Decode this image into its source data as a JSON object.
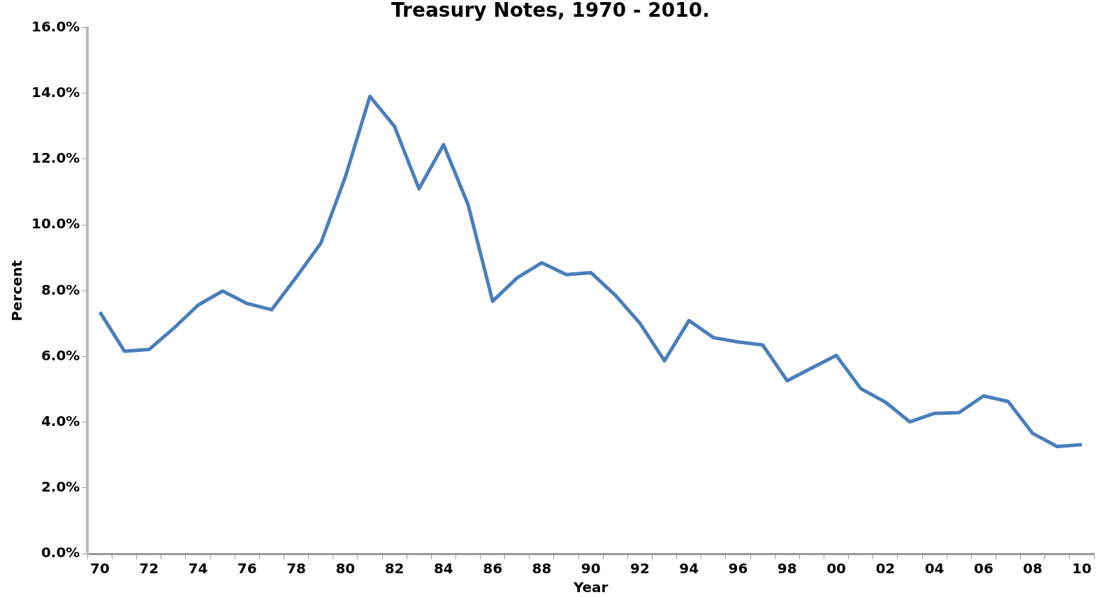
{
  "chart_data": {
    "type": "line",
    "title": "Treasury Notes, 1970 - 2010.",
    "xlabel": "Year",
    "ylabel": "Percent",
    "categories": [
      "70",
      null,
      "72",
      null,
      "74",
      null,
      "76",
      null,
      "78",
      null,
      "80",
      null,
      "82",
      null,
      "84",
      null,
      "86",
      null,
      "88",
      null,
      "90",
      null,
      "92",
      null,
      "94",
      null,
      "96",
      null,
      "98",
      null,
      "00",
      null,
      "02",
      null,
      "04",
      null,
      "06",
      null,
      "08",
      null,
      "10"
    ],
    "series": [
      {
        "color": "#4a7ebb",
        "values": [
          7.35,
          6.16,
          6.21,
          6.85,
          7.56,
          7.99,
          7.61,
          7.42,
          8.41,
          9.44,
          11.46,
          13.91,
          13.0,
          11.1,
          12.44,
          10.62,
          7.68,
          8.39,
          8.85,
          8.49,
          8.55,
          7.86,
          7.01,
          5.87,
          7.09,
          6.57,
          6.44,
          6.35,
          5.26,
          5.65,
          6.03,
          5.02,
          4.61,
          4.01,
          4.27,
          4.29,
          4.8,
          4.63,
          3.66,
          3.26,
          3.32
        ]
      }
    ],
    "ylim": [
      0,
      16
    ],
    "yticks": [
      {
        "value": 0,
        "label": "0.0%"
      },
      {
        "value": 2,
        "label": "2.0%"
      },
      {
        "value": 4,
        "label": "4.0%"
      },
      {
        "value": 6,
        "label": "6.0%"
      },
      {
        "value": 8,
        "label": "8.0%"
      },
      {
        "value": 10,
        "label": "10.0%"
      },
      {
        "value": 12,
        "label": "12.0%"
      },
      {
        "value": 14,
        "label": "14.0%"
      },
      {
        "value": 16,
        "label": "16.0%"
      }
    ],
    "grid": false,
    "legend": false,
    "marker": "none",
    "line_style": "solid"
  }
}
